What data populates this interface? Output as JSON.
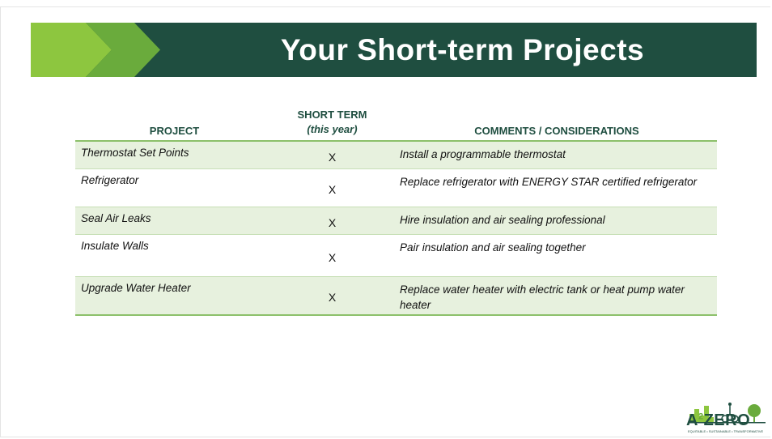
{
  "header": {
    "title": "Your Short-term Projects"
  },
  "table": {
    "headers": [
      "PROJECT",
      "SHORT TERM",
      "(this year)",
      "COMMENTS / CONSIDERATIONS"
    ],
    "rows": [
      [
        "Thermostat Set Points",
        "X",
        "Install a programmable thermostat"
      ],
      [
        "Refrigerator",
        "X",
        "Replace refrigerator with ENERGY STAR certified refrigerator"
      ],
      [
        "Seal Air Leaks",
        "X",
        "Hire insulation and air sealing professional"
      ],
      [
        "Insulate Walls",
        "X",
        "Pair insulation and air sealing together"
      ],
      [
        "Upgrade Water Heater",
        "X",
        "Replace water heater with electric tank or heat pump water heater"
      ]
    ]
  },
  "logo": {
    "main": "A",
    "sup": "2",
    "rest": "ZERO",
    "tagline": "EQUITABLE • SUSTAINABLE • TRANSFORMATIVE"
  }
}
